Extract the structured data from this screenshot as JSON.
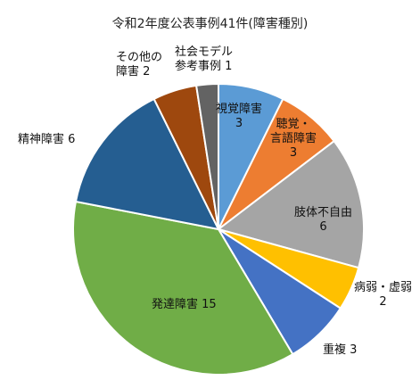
{
  "chart_data": {
    "type": "pie",
    "title": "令和2年度公表事例41件(障害種別)",
    "start_angle_deg": 0,
    "direction": "clockwise",
    "slices": [
      {
        "name": "視覚障害",
        "value": 3,
        "color": "#5B9BD5"
      },
      {
        "name": "聴覚・言語障害",
        "value": 3,
        "color": "#ED7D31"
      },
      {
        "name": "肢体不自由",
        "value": 6,
        "color": "#A5A5A5"
      },
      {
        "name": "病弱・虚弱",
        "value": 2,
        "color": "#FFC000"
      },
      {
        "name": "重複",
        "value": 3,
        "color": "#4472C4"
      },
      {
        "name": "発達障害",
        "value": 15,
        "color": "#70AD47"
      },
      {
        "name": "精神障害",
        "value": 6,
        "color": "#255E91"
      },
      {
        "name": "その他の障害",
        "value": 2,
        "color": "#9E480E"
      },
      {
        "name": "社会モデル参考事例",
        "value": 1,
        "color": "#636363"
      }
    ],
    "labels": [
      {
        "line1": "視覚障害",
        "line2": "3"
      },
      {
        "line1": "聴覚・言語障害",
        "line2": "3",
        "line1_a": "聴覚・",
        "line1_b": "言語障害"
      },
      {
        "line1": "肢体不自由",
        "line2": "6"
      },
      {
        "line1": "病弱・虚弱",
        "line2": "2"
      },
      {
        "line1": "重複",
        "line2": "3"
      },
      {
        "line1": "発達障害",
        "line2": "15"
      },
      {
        "line1": "精神障害",
        "line2": "6"
      },
      {
        "line1": "その他の",
        "line2": "障害 2"
      },
      {
        "line1": "社会モデル",
        "line2": "参考事例 1"
      }
    ]
  }
}
